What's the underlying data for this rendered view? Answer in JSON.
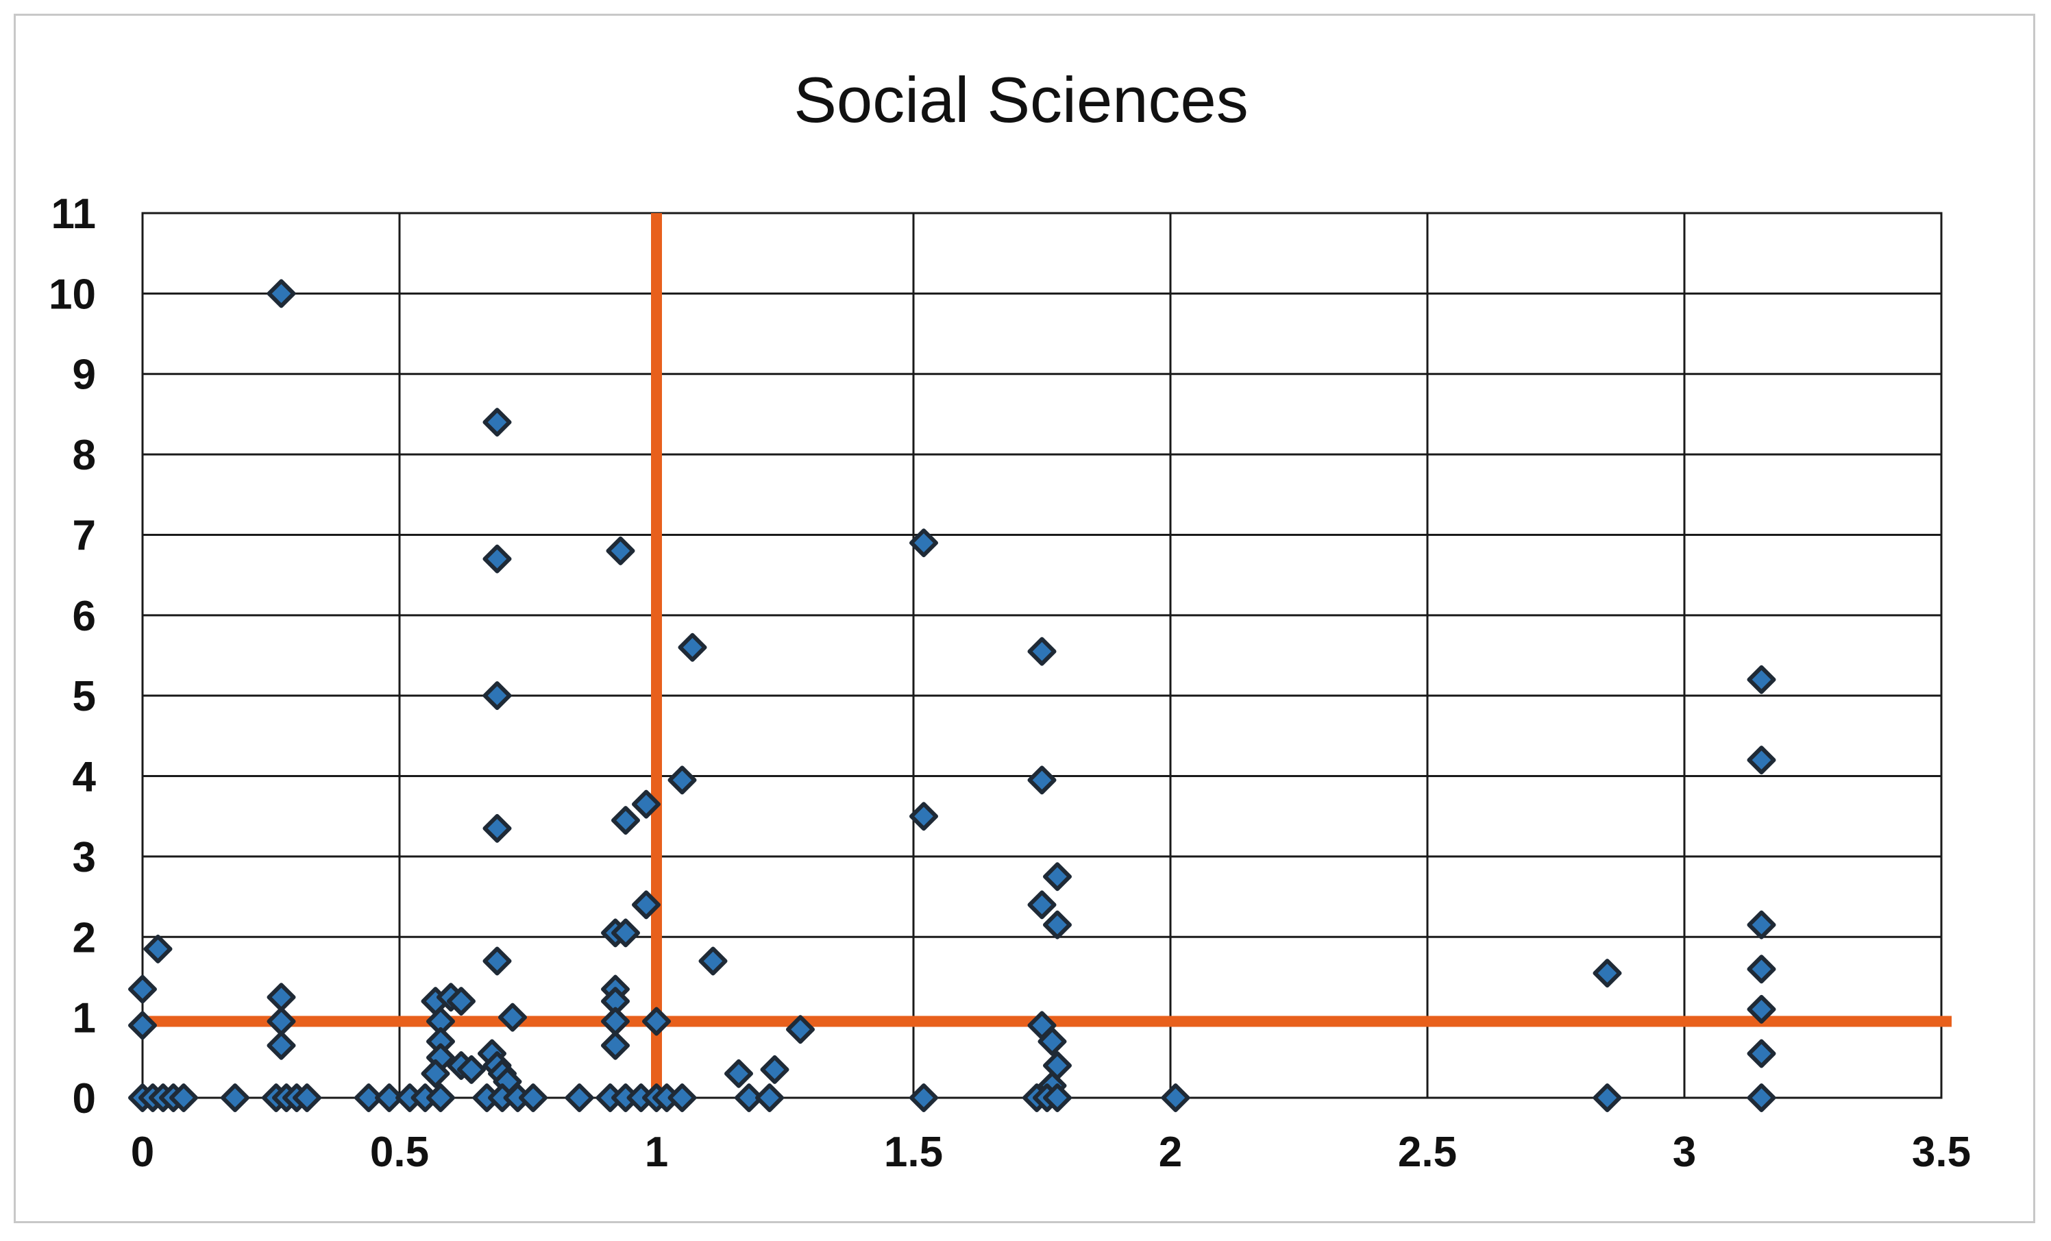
{
  "chart_data": {
    "type": "scatter",
    "title": "Social Sciences",
    "xlabel": "",
    "ylabel": "",
    "xlim": [
      0,
      3.5
    ],
    "ylim": [
      0,
      11
    ],
    "x_ticks": [
      "0",
      "0.5",
      "1",
      "1.5",
      "2",
      "2.5",
      "3",
      "3.5"
    ],
    "y_ticks": [
      "0",
      "1",
      "2",
      "3",
      "4",
      "5",
      "6",
      "7",
      "8",
      "9",
      "10",
      "11"
    ],
    "grid": true,
    "legend": "none",
    "colors": {
      "points": "#2e75b6",
      "point_outline": "#1f2a36",
      "reference_lines": "#e8601c",
      "grid": "#1a1a1a"
    },
    "reference_lines": {
      "vertical_x": 1,
      "horizontal_y": 0.95
    },
    "points": [
      {
        "x": 0.0,
        "y": 1.35
      },
      {
        "x": 0.03,
        "y": 1.85
      },
      {
        "x": 0.0,
        "y": 0.9
      },
      {
        "x": 0.0,
        "y": 0
      },
      {
        "x": 0.02,
        "y": 0
      },
      {
        "x": 0.04,
        "y": 0
      },
      {
        "x": 0.06,
        "y": 0
      },
      {
        "x": 0.08,
        "y": 0
      },
      {
        "x": 0.18,
        "y": 0
      },
      {
        "x": 0.27,
        "y": 10
      },
      {
        "x": 0.27,
        "y": 1.25
      },
      {
        "x": 0.27,
        "y": 0.95
      },
      {
        "x": 0.27,
        "y": 0.65
      },
      {
        "x": 0.26,
        "y": 0
      },
      {
        "x": 0.28,
        "y": 0
      },
      {
        "x": 0.3,
        "y": 0
      },
      {
        "x": 0.32,
        "y": 0
      },
      {
        "x": 0.44,
        "y": 0
      },
      {
        "x": 0.48,
        "y": 0
      },
      {
        "x": 0.52,
        "y": 0
      },
      {
        "x": 0.55,
        "y": 0
      },
      {
        "x": 0.58,
        "y": 0
      },
      {
        "x": 0.57,
        "y": 1.2
      },
      {
        "x": 0.6,
        "y": 1.25
      },
      {
        "x": 0.62,
        "y": 1.2
      },
      {
        "x": 0.58,
        "y": 0.95
      },
      {
        "x": 0.58,
        "y": 0.7
      },
      {
        "x": 0.58,
        "y": 0.5
      },
      {
        "x": 0.57,
        "y": 0.3
      },
      {
        "x": 0.62,
        "y": 0.4
      },
      {
        "x": 0.64,
        "y": 0.35
      },
      {
        "x": 0.69,
        "y": 8.4
      },
      {
        "x": 0.69,
        "y": 6.7
      },
      {
        "x": 0.69,
        "y": 5.0
      },
      {
        "x": 0.69,
        "y": 3.35
      },
      {
        "x": 0.69,
        "y": 1.7
      },
      {
        "x": 0.72,
        "y": 1.0
      },
      {
        "x": 0.68,
        "y": 0.55
      },
      {
        "x": 0.69,
        "y": 0.4
      },
      {
        "x": 0.7,
        "y": 0.3
      },
      {
        "x": 0.71,
        "y": 0.2
      },
      {
        "x": 0.67,
        "y": 0
      },
      {
        "x": 0.7,
        "y": 0
      },
      {
        "x": 0.73,
        "y": 0
      },
      {
        "x": 0.76,
        "y": 0
      },
      {
        "x": 0.85,
        "y": 0
      },
      {
        "x": 0.93,
        "y": 6.8
      },
      {
        "x": 0.94,
        "y": 3.45
      },
      {
        "x": 0.92,
        "y": 2.05
      },
      {
        "x": 0.94,
        "y": 2.05
      },
      {
        "x": 0.92,
        "y": 1.35
      },
      {
        "x": 0.92,
        "y": 1.2
      },
      {
        "x": 0.92,
        "y": 0.95
      },
      {
        "x": 0.92,
        "y": 0.65
      },
      {
        "x": 0.91,
        "y": 0
      },
      {
        "x": 0.94,
        "y": 0
      },
      {
        "x": 0.97,
        "y": 0
      },
      {
        "x": 0.98,
        "y": 3.65
      },
      {
        "x": 0.98,
        "y": 2.4
      },
      {
        "x": 1.0,
        "y": 0.95
      },
      {
        "x": 1.0,
        "y": 0
      },
      {
        "x": 1.02,
        "y": 0
      },
      {
        "x": 1.05,
        "y": 0
      },
      {
        "x": 1.05,
        "y": 3.95
      },
      {
        "x": 1.07,
        "y": 5.6
      },
      {
        "x": 1.11,
        "y": 1.7
      },
      {
        "x": 1.16,
        "y": 0.3
      },
      {
        "x": 1.18,
        "y": 0
      },
      {
        "x": 1.23,
        "y": 0.35
      },
      {
        "x": 1.22,
        "y": 0
      },
      {
        "x": 1.28,
        "y": 0.85
      },
      {
        "x": 1.52,
        "y": 6.9
      },
      {
        "x": 1.52,
        "y": 3.5
      },
      {
        "x": 1.52,
        "y": 0
      },
      {
        "x": 1.75,
        "y": 5.55
      },
      {
        "x": 1.75,
        "y": 3.95
      },
      {
        "x": 1.78,
        "y": 2.75
      },
      {
        "x": 1.75,
        "y": 2.4
      },
      {
        "x": 1.78,
        "y": 2.15
      },
      {
        "x": 1.75,
        "y": 0.9
      },
      {
        "x": 1.77,
        "y": 0.7
      },
      {
        "x": 1.78,
        "y": 0.4
      },
      {
        "x": 1.77,
        "y": 0.15
      },
      {
        "x": 1.74,
        "y": 0
      },
      {
        "x": 1.76,
        "y": 0
      },
      {
        "x": 1.78,
        "y": 0
      },
      {
        "x": 2.01,
        "y": 0
      },
      {
        "x": 2.85,
        "y": 1.55
      },
      {
        "x": 2.85,
        "y": 0
      },
      {
        "x": 3.15,
        "y": 5.2
      },
      {
        "x": 3.15,
        "y": 4.2
      },
      {
        "x": 3.15,
        "y": 2.15
      },
      {
        "x": 3.15,
        "y": 1.6
      },
      {
        "x": 3.15,
        "y": 1.1
      },
      {
        "x": 3.15,
        "y": 0.55
      },
      {
        "x": 3.15,
        "y": 0
      }
    ]
  }
}
